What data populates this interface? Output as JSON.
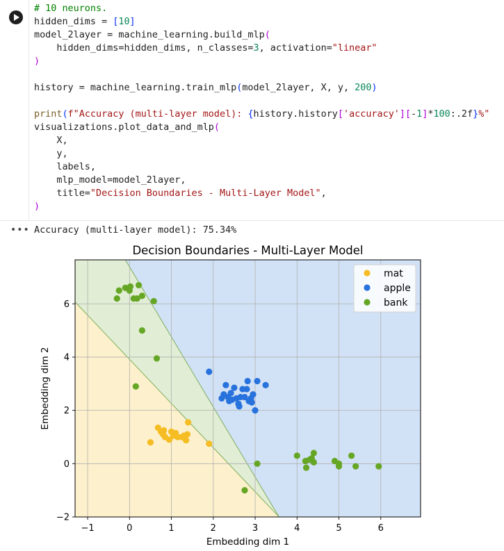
{
  "code_cell": {
    "lines": [
      [
        [
          "c",
          "# 10 neurons."
        ]
      ],
      [
        [
          "t",
          "hidden_dims = "
        ],
        [
          "b",
          "["
        ],
        [
          "n",
          "10"
        ],
        [
          "b",
          "]"
        ]
      ],
      [
        [
          "t",
          "model_2layer = machine_learning.build_mlp"
        ],
        [
          "p",
          "("
        ]
      ],
      [
        [
          "t",
          "    hidden_dims=hidden_dims, n_classes="
        ],
        [
          "n",
          "3"
        ],
        [
          "t",
          ", activation="
        ],
        [
          "s",
          "\"linear\""
        ]
      ],
      [
        [
          "p",
          ")"
        ]
      ],
      [
        [
          "t",
          ""
        ]
      ],
      [
        [
          "t",
          "history = machine_learning.train_mlp"
        ],
        [
          "b",
          "("
        ],
        [
          "t",
          "model_2layer, X, y, "
        ],
        [
          "n",
          "200"
        ],
        [
          "b",
          ")"
        ]
      ],
      [
        [
          "t",
          ""
        ]
      ],
      [
        [
          "f",
          "print"
        ],
        [
          "b",
          "("
        ],
        [
          "s",
          "f\"Accuracy (multi-layer model): "
        ],
        [
          "b",
          "{"
        ],
        [
          "t",
          "history.history"
        ],
        [
          "p",
          "["
        ],
        [
          "s",
          "'accuracy'"
        ],
        [
          "p",
          "]"
        ],
        [
          "p",
          "["
        ],
        [
          "t",
          "-"
        ],
        [
          "n",
          "1"
        ],
        [
          "p",
          "]"
        ],
        [
          "t",
          "*"
        ],
        [
          "n",
          "100"
        ],
        [
          "t",
          ":.2f"
        ],
        [
          "b",
          "}"
        ],
        [
          "s",
          "%\""
        ]
      ],
      [
        [
          "t",
          "visualizations.plot_data_and_mlp"
        ],
        [
          "p",
          "("
        ]
      ],
      [
        [
          "t",
          "    X,"
        ]
      ],
      [
        [
          "t",
          "    y,"
        ]
      ],
      [
        [
          "t",
          "    labels,"
        ]
      ],
      [
        [
          "t",
          "    mlp_model=model_2layer,"
        ]
      ],
      [
        [
          "t",
          "    title="
        ],
        [
          "s",
          "\"Decision Boundaries - Multi-Layer Model\""
        ],
        [
          "t",
          ","
        ]
      ],
      [
        [
          "p",
          ")"
        ]
      ]
    ]
  },
  "output": {
    "menu_dots": "•••",
    "stdout": "Accuracy (multi-layer model): 75.34%"
  },
  "chart_data": {
    "type": "scatter",
    "title": "Decision Boundaries - Multi-Layer Model",
    "xlabel": "Embedding dim 1",
    "ylabel": "Embedding dim 2",
    "xlim": [
      -1.3,
      6.95
    ],
    "ylim": [
      -2.0,
      7.65
    ],
    "xticks": [
      -1,
      0,
      1,
      2,
      3,
      4,
      5,
      6
    ],
    "yticks": [
      -2,
      0,
      2,
      4,
      6
    ],
    "tick_labels_x": [
      "−1",
      "0",
      "1",
      "2",
      "3",
      "4",
      "5",
      "6"
    ],
    "tick_labels_y": [
      "−2",
      "0",
      "2",
      "4",
      "6"
    ],
    "grid": true,
    "legend_position": "top-right",
    "regions": [
      {
        "name": "mat",
        "color": "#fdf0cc",
        "polygon": [
          [
            -1.3,
            -2.0
          ],
          [
            -1.3,
            6.07
          ],
          [
            3.57,
            -2.0
          ]
        ]
      },
      {
        "name": "bank",
        "color": "#e1edd4",
        "polygon": [
          [
            -1.3,
            6.07
          ],
          [
            -1.3,
            7.65
          ],
          [
            -0.1,
            7.65
          ],
          [
            3.57,
            -2.0
          ]
        ]
      },
      {
        "name": "apple",
        "color": "#d2e2f6",
        "polygon": [
          [
            -0.1,
            7.65
          ],
          [
            6.95,
            7.65
          ],
          [
            6.95,
            -2.0
          ],
          [
            3.57,
            -2.0
          ]
        ]
      }
    ],
    "boundaries": [
      {
        "from": [
          -1.3,
          6.07
        ],
        "to": [
          3.57,
          -2.0
        ],
        "color": "#74a84f"
      },
      {
        "from": [
          -0.1,
          7.65
        ],
        "to": [
          3.57,
          -2.0
        ],
        "color": "#74a84f"
      }
    ],
    "series": [
      {
        "name": "mat",
        "color": "#f5bd23",
        "points": [
          [
            0.5,
            0.8
          ],
          [
            0.68,
            1.35
          ],
          [
            0.75,
            1.2
          ],
          [
            0.8,
            1.1
          ],
          [
            0.82,
            1.25
          ],
          [
            0.85,
            1.0
          ],
          [
            0.95,
            0.9
          ],
          [
            1.0,
            1.2
          ],
          [
            1.05,
            1.05
          ],
          [
            1.1,
            1.15
          ],
          [
            1.15,
            1.0
          ],
          [
            1.25,
            1.0
          ],
          [
            1.3,
            1.05
          ],
          [
            1.35,
            0.88
          ],
          [
            1.38,
            1.1
          ],
          [
            1.4,
            1.55
          ],
          [
            1.9,
            0.75
          ]
        ]
      },
      {
        "name": "apple",
        "color": "#2772dc",
        "points": [
          [
            1.9,
            3.45
          ],
          [
            2.2,
            2.45
          ],
          [
            2.25,
            2.6
          ],
          [
            2.3,
            2.95
          ],
          [
            2.35,
            2.5
          ],
          [
            2.38,
            2.35
          ],
          [
            2.42,
            2.65
          ],
          [
            2.45,
            2.4
          ],
          [
            2.5,
            2.85
          ],
          [
            2.55,
            2.45
          ],
          [
            2.6,
            2.25
          ],
          [
            2.62,
            2.15
          ],
          [
            2.65,
            2.5
          ],
          [
            2.7,
            2.8
          ],
          [
            2.75,
            2.5
          ],
          [
            2.8,
            2.8
          ],
          [
            2.82,
            3.1
          ],
          [
            2.85,
            2.35
          ],
          [
            2.9,
            2.45
          ],
          [
            2.92,
            2.3
          ],
          [
            2.95,
            2.6
          ],
          [
            3.0,
            2.0
          ],
          [
            3.05,
            3.1
          ],
          [
            3.25,
            2.95
          ]
        ]
      },
      {
        "name": "bank",
        "color": "#66a625",
        "points": [
          [
            -0.3,
            6.2
          ],
          [
            -0.25,
            6.5
          ],
          [
            -0.1,
            6.6
          ],
          [
            0.0,
            6.5
          ],
          [
            0.02,
            6.65
          ],
          [
            0.1,
            6.2
          ],
          [
            0.18,
            6.2
          ],
          [
            0.22,
            6.7
          ],
          [
            0.3,
            6.3
          ],
          [
            0.58,
            6.1
          ],
          [
            0.3,
            5.0
          ],
          [
            0.65,
            3.95
          ],
          [
            0.15,
            2.9
          ],
          [
            3.05,
            0.0
          ],
          [
            2.75,
            -1.0
          ],
          [
            4.0,
            0.3
          ],
          [
            4.2,
            0.1
          ],
          [
            4.22,
            -0.15
          ],
          [
            4.3,
            0.15
          ],
          [
            4.35,
            0.2
          ],
          [
            4.4,
            0.05
          ],
          [
            4.4,
            0.4
          ],
          [
            4.9,
            0.1
          ],
          [
            5.0,
            -0.1
          ],
          [
            5.0,
            0.0
          ],
          [
            5.3,
            0.3
          ],
          [
            5.4,
            -0.1
          ],
          [
            5.95,
            -0.1
          ]
        ]
      }
    ]
  }
}
